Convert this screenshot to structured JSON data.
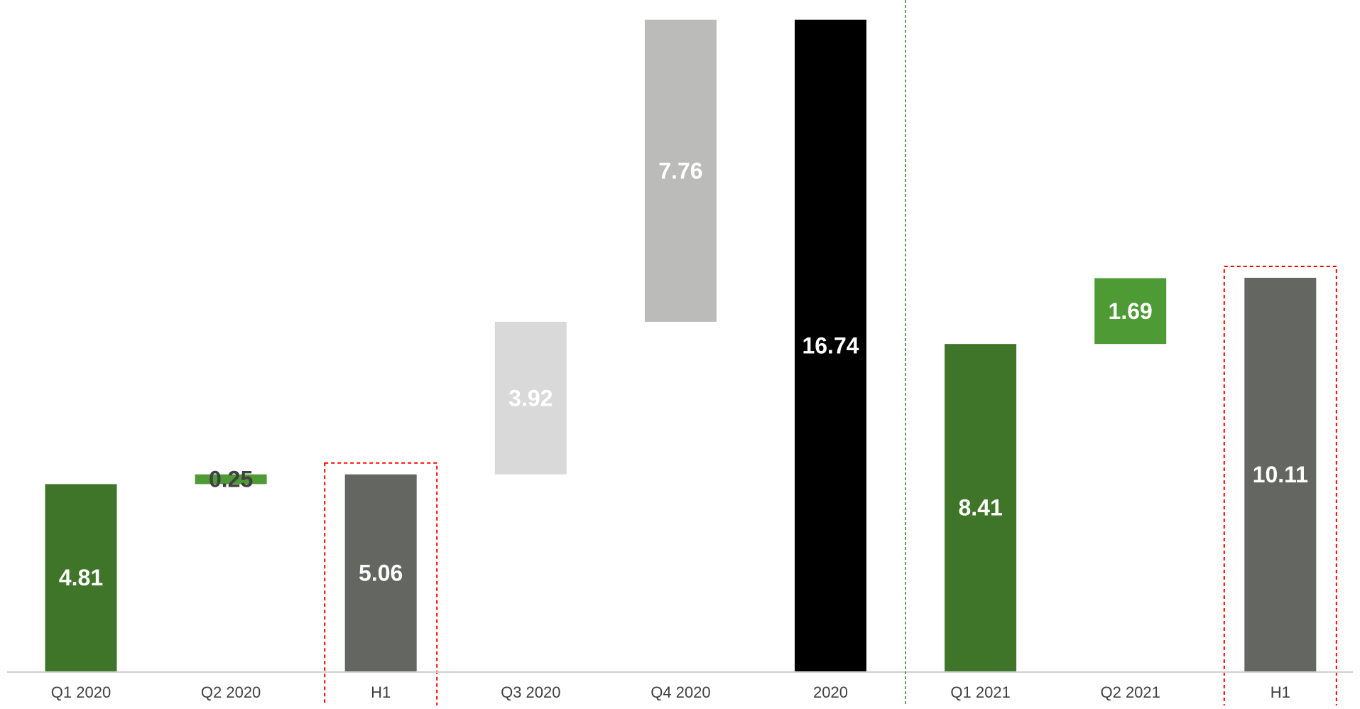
{
  "chart_data": {
    "type": "bar",
    "subtype": "waterfall",
    "title": "",
    "xlabel": "",
    "ylabel": "",
    "ylim": [
      0,
      17.1
    ],
    "grid": false,
    "legend": "none",
    "categories": [
      "Q1 2020",
      "Q2 2020",
      "H1",
      "Q3 2020",
      "Q4 2020",
      "2020",
      "Q1 2021",
      "Q2 2021",
      "H1"
    ],
    "bars": [
      {
        "category": "Q1 2020",
        "value": 4.81,
        "base": 0,
        "label": "4.81",
        "color": "#3f7529",
        "label_color": "#ffffff"
      },
      {
        "category": "Q2 2020",
        "value": 0.25,
        "base": 4.81,
        "label": "0.25",
        "color": "#4e9a35",
        "label_color": "#404040"
      },
      {
        "category": "H1",
        "value": 5.06,
        "base": 0,
        "label": "5.06",
        "color": "#636661",
        "label_color": "#ffffff"
      },
      {
        "category": "Q3 2020",
        "value": 3.92,
        "base": 5.06,
        "label": "3.92",
        "color": "#d9d9d9",
        "label_color": "#ffffff"
      },
      {
        "category": "Q4 2020",
        "value": 7.76,
        "base": 8.98,
        "label": "7.76",
        "color": "#bbbcb9",
        "label_color": "#ffffff"
      },
      {
        "category": "2020",
        "value": 16.74,
        "base": 0,
        "label": "16.74",
        "color": "#000000",
        "label_color": "#ffffff"
      },
      {
        "category": "Q1 2021",
        "value": 8.41,
        "base": 0,
        "label": "8.41",
        "color": "#3f7529",
        "label_color": "#ffffff"
      },
      {
        "category": "Q2 2021",
        "value": 1.69,
        "base": 8.41,
        "label": "1.69",
        "color": "#4e9a35",
        "label_color": "#ffffff"
      },
      {
        "category": "H1",
        "value": 10.11,
        "base": 0,
        "label": "10.11",
        "color": "#636661",
        "label_color": "#ffffff"
      }
    ],
    "highlight_boxes": [
      {
        "category_index": 2,
        "color": "#ff0000",
        "style": "dashed"
      },
      {
        "category_index": 8,
        "color": "#ff0000",
        "style": "dashed"
      }
    ],
    "separator": {
      "between_category_indices": [
        5,
        6
      ],
      "color": "#3a7a2a",
      "style": "dashed"
    },
    "axis_color": "#d0d0d0"
  }
}
